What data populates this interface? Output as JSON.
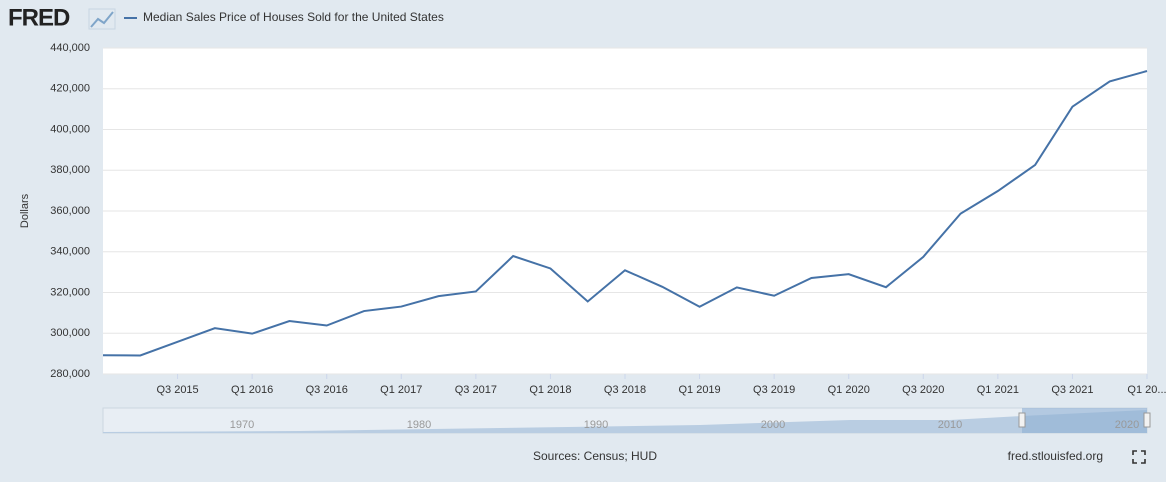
{
  "logo": "FRED",
  "chart_data": {
    "type": "line",
    "title": "Median Sales Price of Houses Sold for the United States",
    "y_label": "Dollars",
    "categories": [
      null,
      null,
      "Q3 2015",
      null,
      "Q1 2016",
      null,
      "Q3 2016",
      null,
      "Q1 2017",
      null,
      "Q3 2017",
      null,
      "Q1 2018",
      null,
      "Q3 2018",
      null,
      "Q1 2019",
      null,
      "Q3 2019",
      null,
      "Q1 2020",
      null,
      "Q3 2020",
      null,
      "Q1 2021",
      null,
      "Q3 2021",
      null,
      "Q1 20..."
    ],
    "series": [
      {
        "name": "Median Sales Price of Houses Sold for the United States",
        "color": "#4572a7",
        "values": [
          289200,
          289100,
          295800,
          302500,
          299800,
          306000,
          303800,
          310900,
          313100,
          318200,
          320500,
          337900,
          331800,
          315600,
          330900,
          322800,
          313000,
          322500,
          318400,
          327100,
          329000,
          322600,
          337500,
          358700,
          369800,
          382600,
          411200,
          423600,
          428700
        ]
      }
    ],
    "ylim": [
      280000,
      440000
    ],
    "yticks": [
      {
        "value": 280000,
        "label": "280,000"
      },
      {
        "value": 300000,
        "label": "300,000"
      },
      {
        "value": 320000,
        "label": "320,000"
      },
      {
        "value": 340000,
        "label": "340,000"
      },
      {
        "value": 360000,
        "label": "360,000"
      },
      {
        "value": 380000,
        "label": "380,000"
      },
      {
        "value": 400000,
        "label": "400,000"
      },
      {
        "value": 420000,
        "label": "420,000"
      },
      {
        "value": 440000,
        "label": "440,000"
      }
    ],
    "grid": true
  },
  "navigator": {
    "labels": [
      "1970",
      "1980",
      "1990",
      "2000",
      "2010",
      "2020"
    ]
  },
  "footer": {
    "sources": "Sources: Census; HUD",
    "site": "fred.stlouisfed.org"
  }
}
